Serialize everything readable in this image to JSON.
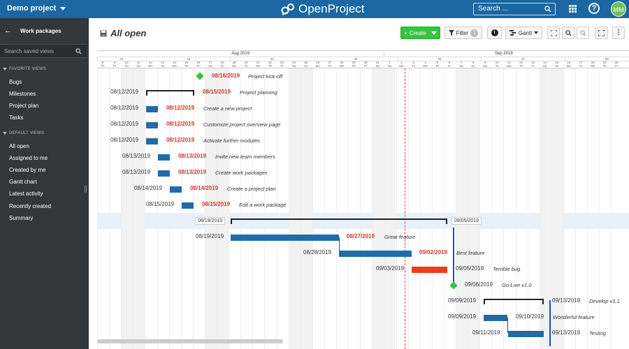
{
  "topbar": {
    "project": "Demo project",
    "logo": "OpenProject",
    "search_placeholder": "Search ...",
    "avatar_initials": "MM"
  },
  "sidebar": {
    "title": "Work packages",
    "search_placeholder": "Search saved views",
    "favorite_header": "FAVORITE VIEWS",
    "favorites": [
      "Bugs",
      "Milestones",
      "Project plan",
      "Tasks"
    ],
    "default_header": "DEFAULT VIEWS",
    "defaults": [
      "All open",
      "Assigned to me",
      "Created by me",
      "Gantt chart",
      "Latest activity",
      "Recently created",
      "Summary"
    ]
  },
  "toolbar": {
    "title": "All open",
    "create_label": "Create",
    "filter_label": "Filter",
    "filter_count": "1",
    "gantt_label": "Gantt"
  },
  "calendar": {
    "months": [
      "Aug 2019",
      "Sep 2019"
    ],
    "weeks": [
      "32",
      "33",
      "34",
      "35",
      "36",
      "37",
      "38"
    ],
    "days": [
      "8",
      "9",
      "10",
      "11",
      "12",
      "13",
      "14",
      "15",
      "16",
      "17",
      "18",
      "19",
      "20",
      "21",
      "22",
      "23",
      "24",
      "25",
      "26",
      "27",
      "28",
      "29",
      "30",
      "31",
      "1",
      "2",
      "3",
      "4",
      "5",
      "6",
      "7",
      "8",
      "9",
      "10",
      "11",
      "12",
      "13",
      "14",
      "15",
      "16",
      "17",
      "18",
      "19",
      "20"
    ],
    "weekdays": [
      "Th",
      "Fr",
      "Sa",
      "Su",
      "Mo",
      "Tu",
      "We",
      "Th",
      "Fr",
      "Sa",
      "Su",
      "Mo",
      "Tu",
      "We",
      "Th",
      "Fr",
      "Sa",
      "Su",
      "Mo",
      "Tu",
      "We",
      "Th",
      "Fr",
      "Sa",
      "Su",
      "Mo",
      "Tu",
      "We",
      "Th",
      "Fr",
      "Sa",
      "Su",
      "Mo",
      "Tu",
      "We",
      "Th",
      "Fr",
      "Sa",
      "Su",
      "Mo",
      "Tu",
      "We",
      "Th",
      "Fr"
    ]
  },
  "rows": [
    {
      "start": "",
      "end": "08/16/2019",
      "label": "Project kick-off"
    },
    {
      "start": "08/12/2019",
      "end": "08/15/2019",
      "label": "Project planning"
    },
    {
      "start": "08/12/2019",
      "end": "08/12/2019",
      "label": "Create a new project"
    },
    {
      "start": "08/12/2019",
      "end": "08/12/2019",
      "label": "Customize project overview page"
    },
    {
      "start": "08/12/2019",
      "end": "08/12/2019",
      "label": "Activate further modules"
    },
    {
      "start": "08/13/2019",
      "end": "08/13/2019",
      "label": "Invite new team members"
    },
    {
      "start": "08/13/2019",
      "end": "08/13/2019",
      "label": "Create work packages"
    },
    {
      "start": "08/14/2019",
      "end": "08/14/2019",
      "label": "Create a project plan"
    },
    {
      "start": "08/15/2019",
      "end": "08/15/2019",
      "label": "Edit a work package"
    },
    {
      "start": "08/19/2019",
      "end": "09/05/2019",
      "label": ""
    },
    {
      "start": "08/19/2019",
      "end": "08/27/2019",
      "label": "Great feature"
    },
    {
      "start": "08/28/2019",
      "end": "09/02/2019",
      "label": "Best feature"
    },
    {
      "start": "09/03/2019",
      "end": "09/05/2019",
      "label": "Terrible bug"
    },
    {
      "start": "",
      "end": "09/06/2019",
      "label": "Go-Live v1.0"
    },
    {
      "start": "09/09/2019",
      "end": "09/13/2019",
      "label": "Develop v1.1"
    },
    {
      "start": "09/09/2019",
      "end": "09/10/2019",
      "label": "Wonderful feature"
    },
    {
      "start": "09/11/2019",
      "end": "09/13/2019",
      "label": "Testing"
    }
  ]
}
